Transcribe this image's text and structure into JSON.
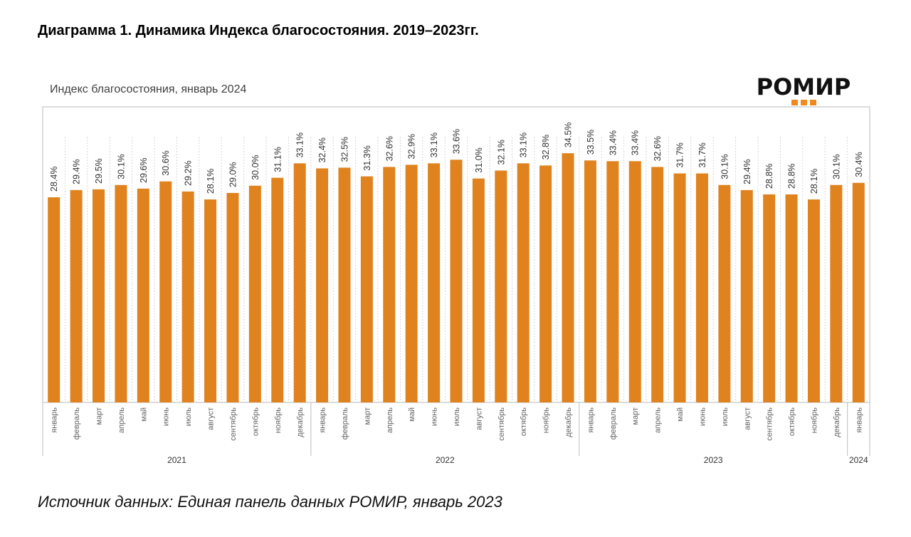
{
  "title": "Диаграмма 1. Динамика Индекса благосостояния. 2019–2023гг.",
  "logo": "РОМИР",
  "source": "Источник данных: Единая панель данных РОМИР, январь 2023",
  "chart_data": {
    "type": "bar",
    "title": "Индекс благосостояния, январь 2024",
    "xlabel": "",
    "ylabel": "",
    "ylim": [
      0,
      41
    ],
    "grid": "vertical dashed separators",
    "bar_color": "#E0821E",
    "unit": "%",
    "groups": [
      {
        "year": "2021",
        "count": 12
      },
      {
        "year": "2022",
        "count": 12
      },
      {
        "year": "2023",
        "count": 12
      },
      {
        "year": "2024",
        "count": 1
      }
    ],
    "categories": [
      "январь",
      "февраль",
      "март",
      "апрель",
      "май",
      "июнь",
      "июль",
      "август",
      "сентябрь",
      "октябрь",
      "ноябрь",
      "декабрь",
      "январь",
      "февраль",
      "март",
      "апрель",
      "май",
      "июнь",
      "июль",
      "август",
      "сентябрь",
      "октябрь",
      "ноябрь",
      "декабрь",
      "январь",
      "февраль",
      "март",
      "апрель",
      "май",
      "июнь",
      "июль",
      "август",
      "сентябрь",
      "октябрь",
      "ноябрь",
      "декабрь",
      "январь"
    ],
    "values": [
      28.4,
      29.4,
      29.5,
      30.1,
      29.6,
      30.6,
      29.2,
      28.1,
      29.0,
      30.0,
      31.1,
      33.1,
      32.4,
      32.5,
      31.3,
      32.6,
      32.9,
      33.1,
      33.6,
      31.0,
      32.1,
      33.1,
      32.8,
      34.5,
      33.5,
      33.4,
      33.4,
      32.6,
      31.7,
      31.7,
      30.1,
      29.4,
      28.8,
      28.8,
      28.1,
      30.1,
      30.4
    ]
  }
}
